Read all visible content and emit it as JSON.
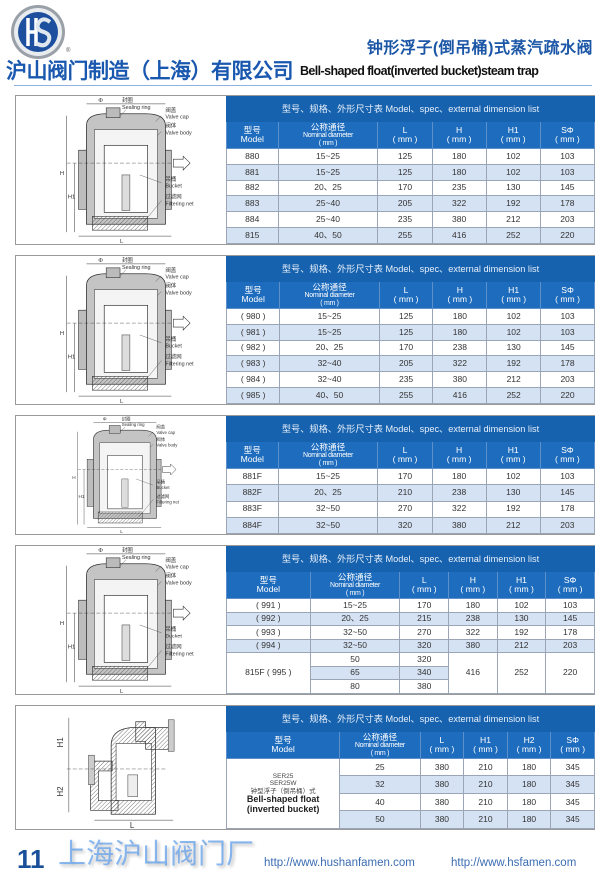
{
  "header": {
    "logo_text": "HS",
    "registered_mark": "®",
    "title_cn": "钟形浮子(倒吊桶)式蒸汽疏水阀",
    "company": "沪山阀门制造（上海）有限公司",
    "title_en": "Bell-shaped float(inverted bucket)steam trap",
    "accent_color": "#1c56a6"
  },
  "diagram_labels": {
    "sealing_ring_cn": "封圈",
    "sealing_ring_en": "Sealing ring",
    "valve_cap_cn": "阀盖",
    "valve_cap_en": "Valve cap",
    "valve_body_cn": "阀体",
    "valve_body_en": "Valve body",
    "bucket_cn": "吊桶",
    "bucket_en": "Bucket",
    "filter_cn": "过滤网",
    "filter_en": "Filtering net",
    "phi": "Φ",
    "H": "H",
    "H1": "H1",
    "H2": "H2",
    "L": "L"
  },
  "tables": [
    {
      "band": "型号、规格、外形尺寸表  Model、spec、external dimension list",
      "cols": [
        [
          "型号",
          "Model"
        ],
        [
          "公称通径",
          "Nominal diameter",
          "( mm )"
        ],
        [
          "L",
          "( mm )"
        ],
        [
          "H",
          "( mm )"
        ],
        [
          "H1",
          "( mm )"
        ],
        [
          "SΦ",
          "( mm )"
        ]
      ],
      "rows": [
        [
          "880",
          "15~25",
          "125",
          "180",
          "102",
          "103"
        ],
        [
          "881",
          "15~25",
          "125",
          "180",
          "102",
          "103"
        ],
        [
          "882",
          "20、25",
          "170",
          "235",
          "130",
          "145"
        ],
        [
          "883",
          "25~40",
          "205",
          "322",
          "192",
          "178"
        ],
        [
          "884",
          "25~40",
          "235",
          "380",
          "212",
          "203"
        ],
        [
          "815",
          "40、50",
          "255",
          "416",
          "252",
          "220"
        ]
      ]
    },
    {
      "band": "型号、规格、外形尺寸表  Model、spec、external dimension list",
      "cols": [
        [
          "型号",
          "Model"
        ],
        [
          "公称通径",
          "Nominal diameter",
          "( mm )"
        ],
        [
          "L",
          "( mm )"
        ],
        [
          "H",
          "( mm )"
        ],
        [
          "H1",
          "( mm )"
        ],
        [
          "SΦ",
          "( mm )"
        ]
      ],
      "rows": [
        [
          "( 980 )",
          "15~25",
          "125",
          "180",
          "102",
          "103"
        ],
        [
          "( 981 )",
          "15~25",
          "125",
          "180",
          "102",
          "103"
        ],
        [
          "( 982 )",
          "20、25",
          "170",
          "238",
          "130",
          "145"
        ],
        [
          "( 983 )",
          "32~40",
          "205",
          "322",
          "192",
          "178"
        ],
        [
          "( 984 )",
          "32~40",
          "235",
          "380",
          "212",
          "203"
        ],
        [
          "( 985 )",
          "40、50",
          "255",
          "416",
          "252",
          "220"
        ]
      ]
    },
    {
      "band": "型号、规格、外形尺寸表  Model、spec、external dimension list",
      "cols": [
        [
          "型号",
          "Model"
        ],
        [
          "公称通径",
          "Nominal diameter",
          "( mm )"
        ],
        [
          "L",
          "( mm )"
        ],
        [
          "H",
          "( mm )"
        ],
        [
          "H1",
          "( mm )"
        ],
        [
          "SΦ",
          "( mm )"
        ]
      ],
      "rows": [
        [
          "881F",
          "15~25",
          "170",
          "180",
          "102",
          "103"
        ],
        [
          "882F",
          "20、25",
          "210",
          "238",
          "130",
          "145"
        ],
        [
          "883F",
          "32~50",
          "270",
          "322",
          "192",
          "178"
        ],
        [
          "884F",
          "32~50",
          "320",
          "380",
          "212",
          "203"
        ]
      ]
    },
    {
      "band": "型号、规格、外形尺寸表  Model、spec、external dimension list",
      "cols": [
        [
          "型号",
          "Model"
        ],
        [
          "公称通径",
          "Nominal diameter",
          "( mm )"
        ],
        [
          "L",
          "( mm )"
        ],
        [
          "H",
          "( mm )"
        ],
        [
          "H1",
          "( mm )"
        ],
        [
          "SΦ",
          "( mm )"
        ]
      ],
      "rows": [
        [
          "( 991 )",
          "15~25",
          "170",
          "180",
          "102",
          "103"
        ],
        [
          "( 992 )",
          "20、25",
          "215",
          "238",
          "130",
          "145"
        ],
        [
          "( 993 )",
          "32~50",
          "270",
          "322",
          "192",
          "178"
        ],
        [
          "( 994 )",
          "32~50",
          "320",
          "380",
          "212",
          "203"
        ],
        [
          {
            "text": "815F ( 995 )",
            "rowspan": 3
          },
          "50",
          "320",
          {
            "text": "416",
            "rowspan": 3
          },
          {
            "text": "252",
            "rowspan": 3
          },
          {
            "text": "220",
            "rowspan": 3
          }
        ],
        [
          "65",
          "340"
        ],
        [
          "80",
          "380"
        ]
      ]
    },
    {
      "band": "型号、规格、外形尺寸表  Model、spec、external dimension list",
      "cols": [
        [
          "型号",
          "Model"
        ],
        [
          "公称通径",
          "Nominal diameter",
          "( mm )"
        ],
        [
          "L",
          "( mm )"
        ],
        [
          "H1",
          "( mm )"
        ],
        [
          "H2",
          "( mm )"
        ],
        [
          "SΦ",
          "( mm )"
        ]
      ],
      "rows": [
        [
          {
            "lines": [
              "SER25",
              "SER25W",
              "钟型浮子（倒吊桶）式"
            ],
            "en": [
              "Bell-shaped float",
              "(inverted bucket)"
            ],
            "rowspan": 4
          },
          "25",
          "380",
          "210",
          "180",
          "345"
        ],
        [
          "32",
          "380",
          "210",
          "180",
          "345"
        ],
        [
          "40",
          "380",
          "210",
          "180",
          "345"
        ],
        [
          "50",
          "380",
          "210",
          "180",
          "345"
        ]
      ]
    }
  ],
  "watermark": "上海沪山阀门厂",
  "footer": {
    "page_number": "11",
    "url1": "http://www.hushanfamen.com",
    "url2": "http://www.hsfamen.com"
  }
}
